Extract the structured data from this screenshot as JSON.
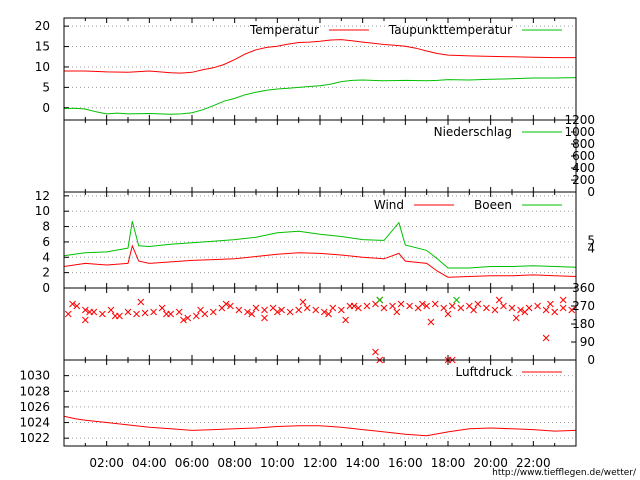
{
  "footer_url": "http://www.tiefflegen.de/wetter/",
  "time_ticks": [
    "02:00",
    "04:00",
    "06:00",
    "08:00",
    "10:00",
    "12:00",
    "14:00",
    "16:00",
    "18:00",
    "20:00",
    "22:00"
  ],
  "colors": {
    "red": "#ff0000",
    "green": "#00c000",
    "black": "#000000",
    "grid": "#a0a0a0",
    "background": "#ffffff"
  },
  "chart_data": [
    {
      "type": "line",
      "title": "",
      "x_unit": "hour of day",
      "xlim": [
        0,
        24
      ],
      "ylim": [
        -3,
        22
      ],
      "yticks": [
        0,
        5,
        10,
        15,
        20
      ],
      "grid": true,
      "legend_position": "top-right",
      "series": [
        {
          "name": "Temperatur",
          "color": "#ff0000",
          "x": [
            0,
            1,
            2,
            3,
            4,
            5,
            5.5,
            6,
            6.5,
            7,
            7.5,
            8,
            8.5,
            9,
            9.5,
            10,
            10.5,
            11,
            11.5,
            12,
            12.5,
            13,
            13.5,
            14,
            14.5,
            15,
            15.5,
            16,
            16.5,
            17,
            17.5,
            18,
            19,
            20,
            21,
            22,
            23,
            24
          ],
          "y": [
            9,
            9,
            8.8,
            8.7,
            9,
            8.6,
            8.5,
            8.7,
            9.3,
            9.8,
            10.6,
            11.8,
            13.2,
            14.2,
            14.8,
            15.1,
            15.6,
            16,
            16.1,
            16.3,
            16.6,
            16.7,
            16.4,
            16.1,
            15.8,
            15.5,
            15.3,
            15.1,
            14.6,
            13.9,
            13.3,
            12.9,
            12.7,
            12.6,
            12.5,
            12.4,
            12.3,
            12.3
          ]
        },
        {
          "name": "Taupunkttemperatur",
          "color": "#00c000",
          "x": [
            0,
            0.5,
            1,
            1.5,
            2,
            2.5,
            3,
            4,
            5,
            5.5,
            6,
            6.5,
            7,
            7.5,
            8,
            8.5,
            9,
            9.5,
            10,
            10.5,
            11,
            11.5,
            12,
            12.5,
            13,
            13.5,
            14,
            15,
            16,
            17,
            17.5,
            18,
            19,
            20,
            21,
            22,
            23,
            24
          ],
          "y": [
            -0.2,
            -0.1,
            -0.3,
            -1,
            -1.5,
            -1.3,
            -1.5,
            -1.4,
            -1.6,
            -1.5,
            -1.2,
            -0.5,
            0.5,
            1.6,
            2.3,
            3.2,
            3.8,
            4.3,
            4.6,
            4.8,
            5,
            5.2,
            5.4,
            5.8,
            6.4,
            6.7,
            6.8,
            6.6,
            6.7,
            6.6,
            6.7,
            6.9,
            6.8,
            7,
            7.1,
            7.3,
            7.3,
            7.4
          ]
        }
      ]
    },
    {
      "type": "line",
      "title": "",
      "xlim": [
        0,
        24
      ],
      "ylim": [
        0,
        1200
      ],
      "yticks": [
        0,
        200,
        400,
        600,
        800,
        1000,
        1200
      ],
      "y_axis_side": "right",
      "grid": false,
      "legend_position": "top-right",
      "series": [
        {
          "name": "Niederschlag",
          "color": "#00c000",
          "x": [
            0,
            24
          ],
          "y": [
            0,
            0
          ]
        }
      ]
    },
    {
      "type": "line",
      "title": "",
      "xlim": [
        0,
        24
      ],
      "ylim": [
        0,
        12.5
      ],
      "yticks": [
        0,
        2,
        4,
        6,
        8,
        10,
        12
      ],
      "right_ticks": [
        4,
        5
      ],
      "grid": true,
      "legend_position": "top-right",
      "series": [
        {
          "name": "Wind",
          "color": "#ff0000",
          "x": [
            0,
            1,
            2,
            3,
            3.2,
            3.5,
            4,
            5,
            6,
            7,
            8,
            9,
            10,
            11,
            12,
            13,
            14,
            15,
            15.7,
            16,
            17,
            17.5,
            18,
            19,
            20,
            21,
            22,
            23,
            24
          ],
          "y": [
            2.8,
            3.2,
            3,
            3.2,
            5.5,
            3.5,
            3.2,
            3.4,
            3.6,
            3.7,
            3.8,
            4.1,
            4.4,
            4.6,
            4.5,
            4.3,
            4,
            3.8,
            4.5,
            3.5,
            3.2,
            2.2,
            1.4,
            1.5,
            1.6,
            1.6,
            1.7,
            1.6,
            1.5
          ]
        },
        {
          "name": "Boeen",
          "color": "#00c000",
          "x": [
            0,
            1,
            2,
            3,
            3.2,
            3.5,
            4,
            5,
            6,
            7,
            8,
            9,
            10,
            11,
            12,
            13,
            14,
            15,
            15.7,
            16,
            17,
            17.5,
            18,
            19,
            20,
            21,
            22,
            23,
            24
          ],
          "y": [
            4.2,
            4.6,
            4.7,
            5.2,
            8.7,
            5.5,
            5.4,
            5.7,
            5.9,
            6.1,
            6.3,
            6.6,
            7.2,
            7.4,
            7,
            6.7,
            6.3,
            6.2,
            8.5,
            5.6,
            4.9,
            3.8,
            2.6,
            2.6,
            2.8,
            2.8,
            2.9,
            2.8,
            2.7
          ]
        }
      ]
    },
    {
      "type": "scatter",
      "title": "",
      "xlim": [
        0,
        24
      ],
      "ylim": [
        0,
        360
      ],
      "yticks": [
        0,
        90,
        180,
        270,
        360
      ],
      "y_axis_side": "right",
      "grid": false,
      "series": [
        {
          "color": "#ff0000",
          "x": [
            0.2,
            0.6,
            1.0,
            1.4,
            1.8,
            2.2,
            2.6,
            3.0,
            3.4,
            3.8,
            4.2,
            4.6,
            5.0,
            5.4,
            5.8,
            6.2,
            6.6,
            7.0,
            7.4,
            7.8,
            8.2,
            8.6,
            9.0,
            9.4,
            9.8,
            10.2,
            10.6,
            11.0,
            11.4,
            11.8,
            12.2,
            12.6,
            13.0,
            13.4,
            13.8,
            14.2,
            14.6,
            15.0,
            15.4,
            15.8,
            16.2,
            16.6,
            17.0,
            17.4,
            17.8,
            18.2,
            18.6,
            19.0,
            19.4,
            19.8,
            20.2,
            20.6,
            21.0,
            21.4,
            21.8,
            22.2,
            22.6,
            23.0,
            23.4,
            23.8,
            0.4,
            1.2,
            2.4,
            3.6,
            4.8,
            6.4,
            7.6,
            8.8,
            10.0,
            11.2,
            12.4,
            13.6,
            14.8,
            15.6,
            16.8,
            18.0,
            19.2,
            20.4,
            21.6,
            22.8,
            14.6,
            14.8,
            18.0,
            18.2,
            22.6,
            1.0,
            5.6,
            9.4,
            13.2,
            17.2,
            21.2,
            23.4
          ],
          "y": [
            230,
            270,
            250,
            240,
            230,
            250,
            220,
            240,
            230,
            235,
            240,
            260,
            230,
            240,
            210,
            220,
            230,
            240,
            260,
            270,
            250,
            240,
            260,
            250,
            260,
            250,
            240,
            250,
            260,
            250,
            240,
            260,
            250,
            270,
            260,
            270,
            280,
            260,
            270,
            280,
            270,
            260,
            270,
            280,
            260,
            270,
            260,
            270,
            280,
            260,
            250,
            270,
            260,
            250,
            260,
            270,
            250,
            240,
            260,
            250,
            280,
            240,
            220,
            290,
            230,
            250,
            280,
            230,
            240,
            290,
            230,
            270,
            300,
            240,
            280,
            230,
            250,
            300,
            240,
            280,
            40,
            0,
            0,
            0,
            110,
            200,
            200,
            210,
            200,
            190,
            210,
            300
          ]
        },
        {
          "color": "#00c000",
          "x": [
            14.8,
            18.4
          ],
          "y": [
            300,
            300
          ]
        }
      ]
    },
    {
      "type": "line",
      "title": "",
      "xlim": [
        0,
        24
      ],
      "ylim": [
        1021,
        1032
      ],
      "yticks": [
        1022,
        1024,
        1026,
        1028,
        1030
      ],
      "grid": true,
      "legend_position": "top-right",
      "series": [
        {
          "name": "Luftdruck",
          "color": "#ff0000",
          "x": [
            0,
            0.5,
            1,
            2,
            3,
            4,
            5,
            6,
            7,
            8,
            9,
            10,
            11,
            12,
            13,
            14,
            15,
            16,
            17,
            18,
            19,
            20,
            21,
            22,
            23,
            24
          ],
          "y": [
            1024.8,
            1024.5,
            1024.3,
            1024,
            1023.7,
            1023.4,
            1023.2,
            1023,
            1023.1,
            1023.2,
            1023.3,
            1023.5,
            1023.6,
            1023.6,
            1023.4,
            1023.1,
            1022.8,
            1022.5,
            1022.3,
            1022.8,
            1023.2,
            1023.3,
            1023.2,
            1023.1,
            1022.9,
            1023
          ]
        }
      ]
    }
  ]
}
